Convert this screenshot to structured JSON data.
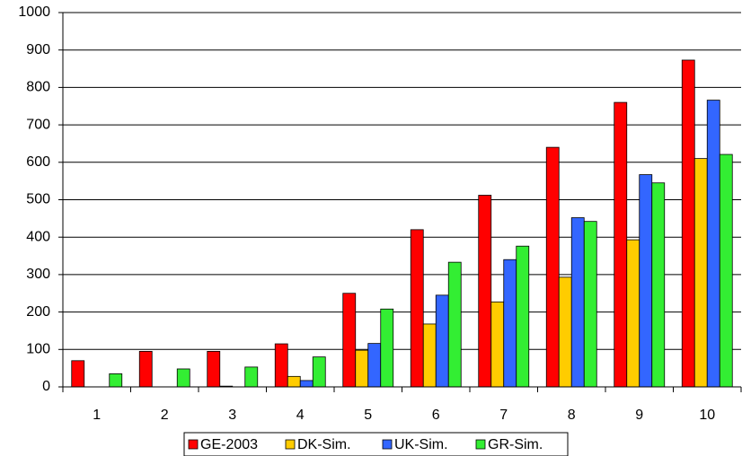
{
  "chart_data": {
    "type": "bar",
    "categories": [
      "1",
      "2",
      "3",
      "4",
      "5",
      "6",
      "7",
      "8",
      "9",
      "10"
    ],
    "series": [
      {
        "name": "GE-2003",
        "color": "#ff0000",
        "values": [
          70,
          95,
          95,
          115,
          250,
          420,
          512,
          640,
          760,
          873
        ]
      },
      {
        "name": "DK-Sim.",
        "color": "#ffcc00",
        "values": [
          0,
          0,
          2,
          28,
          98,
          168,
          227,
          293,
          393,
          610
        ]
      },
      {
        "name": "UK-Sim.",
        "color": "#3366ff",
        "values": [
          0,
          0,
          0,
          17,
          116,
          245,
          340,
          452,
          567,
          766
        ]
      },
      {
        "name": "GR-Sim.",
        "color": "#33ee33",
        "values": [
          35,
          48,
          53,
          80,
          208,
          333,
          376,
          442,
          545,
          621
        ]
      }
    ],
    "ylim": [
      0,
      1000
    ],
    "yticks": [
      0,
      100,
      200,
      300,
      400,
      500,
      600,
      700,
      800,
      900,
      1000
    ],
    "grid": true,
    "legend": "bottom"
  }
}
